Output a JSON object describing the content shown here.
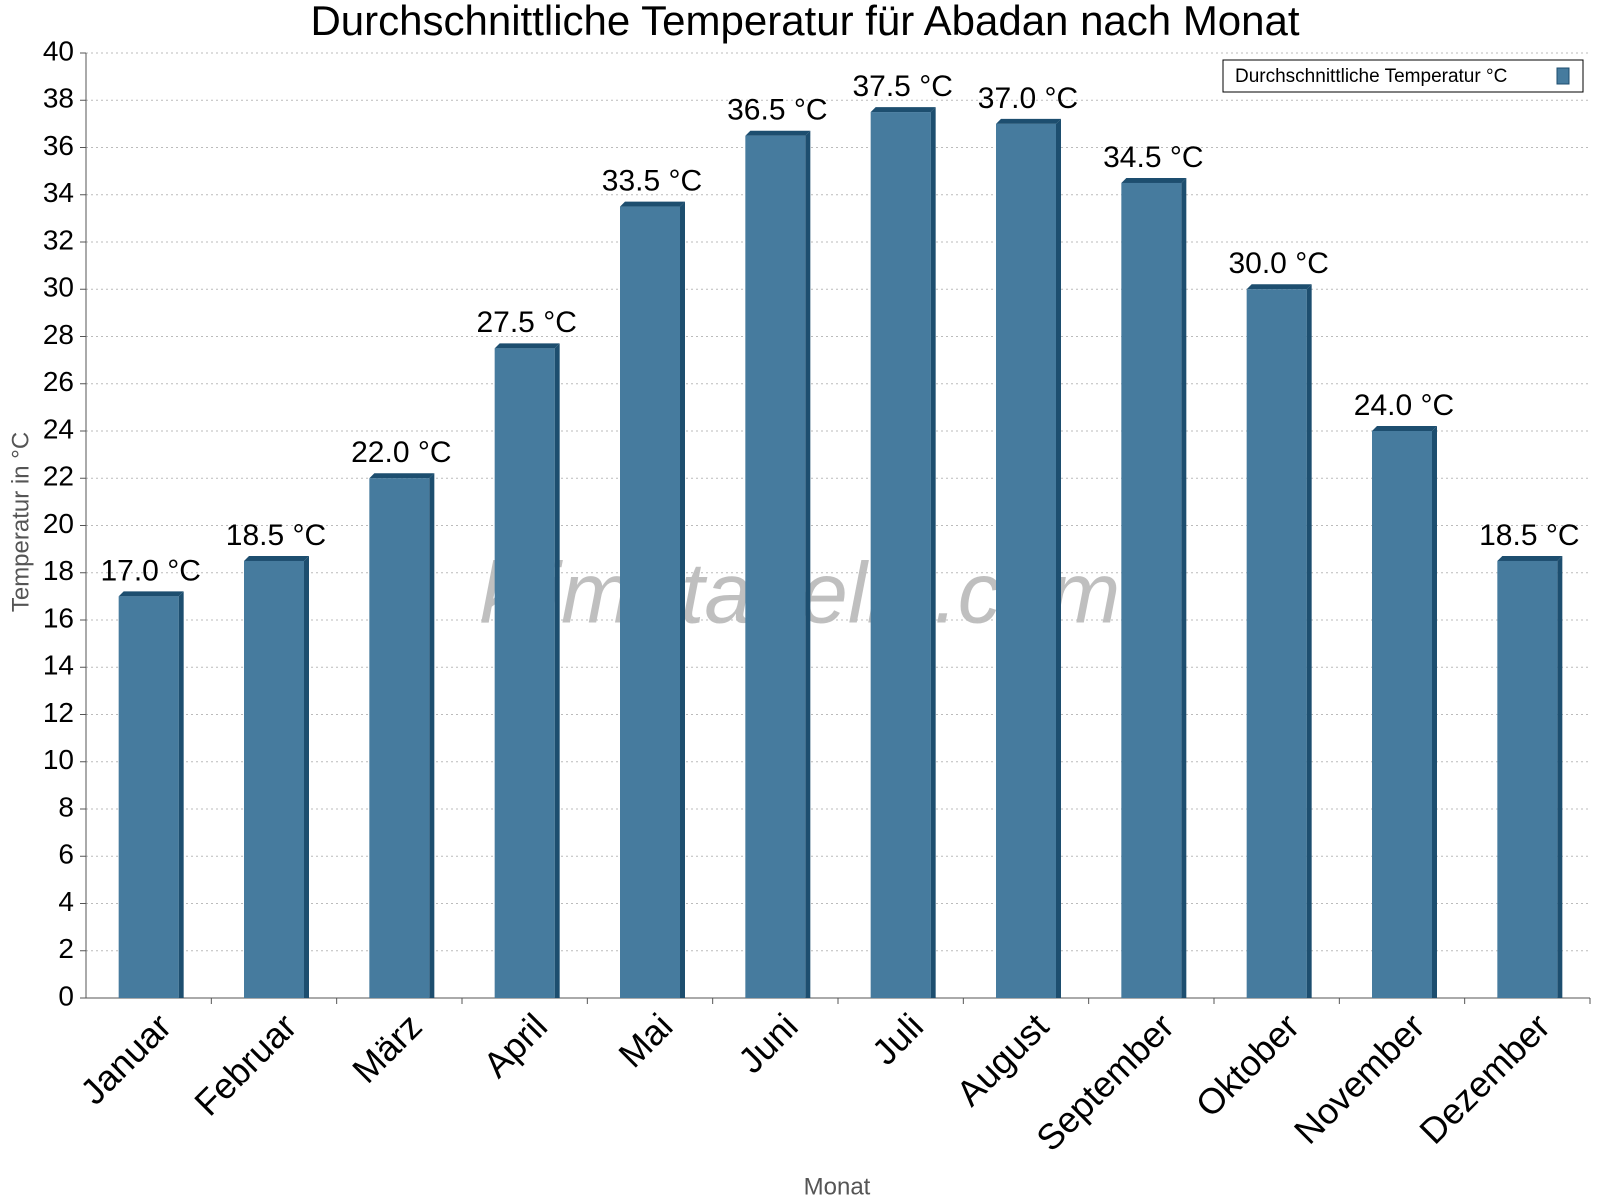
{
  "chart_data": {
    "type": "bar",
    "title": "Durchschnittliche Temperatur für Abadan nach Monat",
    "x_label": "Monat",
    "y_label": "Temperatur in °C",
    "watermark": "klimatabelle.com",
    "categories": [
      "Januar",
      "Februar",
      "März",
      "April",
      "Mai",
      "Juni",
      "Juli",
      "August",
      "September",
      "Oktober",
      "November",
      "Dezember"
    ],
    "series": [
      {
        "name": "Durchschnittliche Temperatur °C",
        "color": "#467b9e",
        "values": [
          17.0,
          18.5,
          22.0,
          27.5,
          33.5,
          36.5,
          37.5,
          37.0,
          34.5,
          30.0,
          24.0,
          18.5
        ],
        "value_labels": [
          "17.0 °C",
          "18.5 °C",
          "22.0 °C",
          "27.5 °C",
          "33.5 °C",
          "36.5 °C",
          "37.5 °C",
          "37.0 °C",
          "34.5 °C",
          "30.0 °C",
          "24.0 °C",
          "18.5 °C"
        ]
      }
    ],
    "ylim": [
      0,
      40
    ],
    "yticks": [
      0,
      2,
      4,
      6,
      8,
      10,
      12,
      14,
      16,
      18,
      20,
      22,
      24,
      26,
      28,
      30,
      32,
      34,
      36,
      38,
      40
    ],
    "grid": true,
    "legend": "top-right"
  }
}
